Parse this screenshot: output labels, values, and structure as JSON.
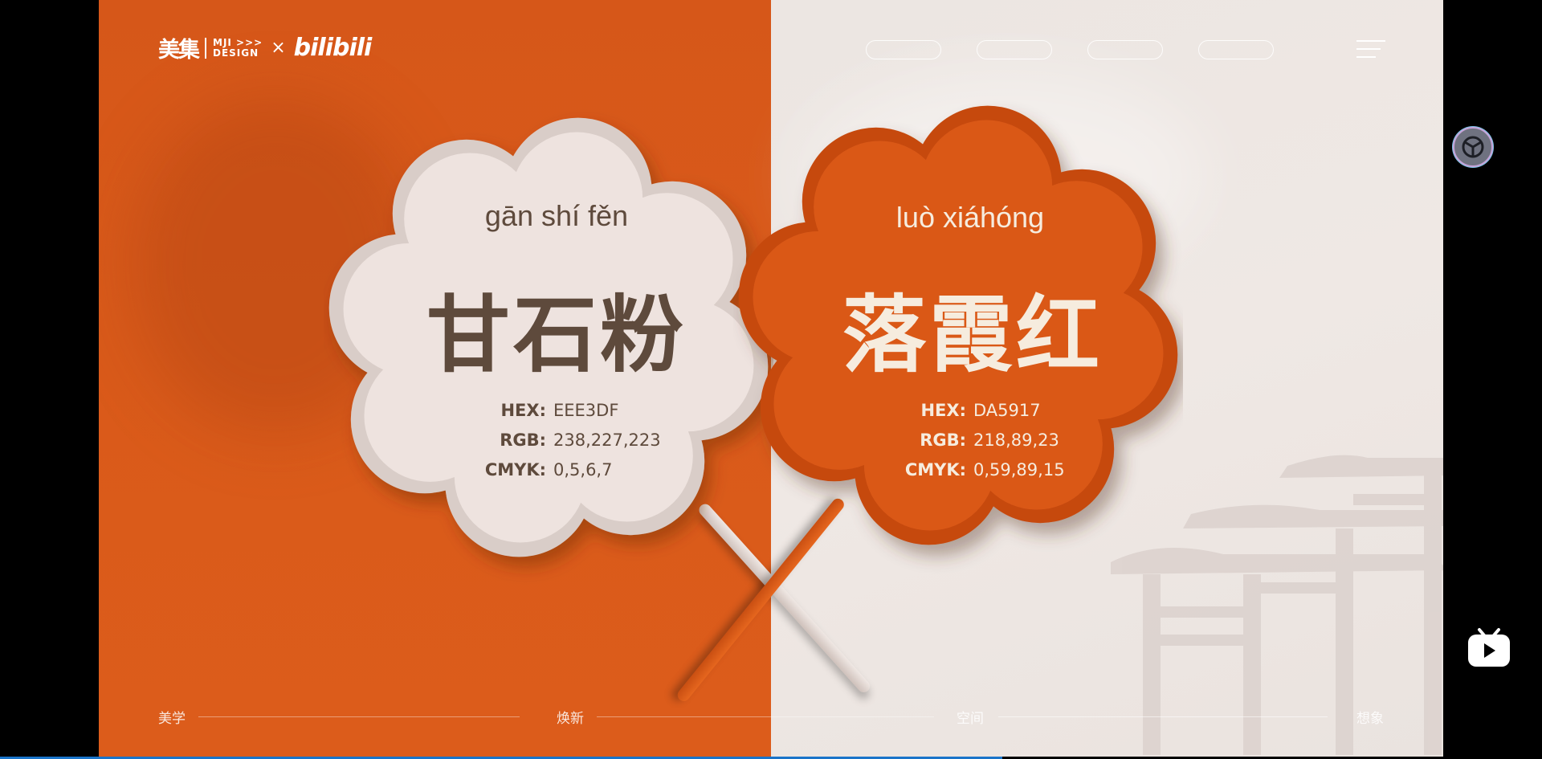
{
  "logo": {
    "brand_cn": "美集",
    "brand_en_line1": "MJI >>>",
    "brand_en_line2": "DESIGN",
    "times": "×",
    "partner": "bilibili"
  },
  "left_card": {
    "pinyin": "gān shí fěn",
    "name": "甘石粉",
    "hex_label": "HEX:",
    "hex_value": "EEE3DF",
    "rgb_label": "RGB:",
    "rgb_value": "238,227,223",
    "cmyk_label": "CMYK:",
    "cmyk_value": "0,5,6,7",
    "color": "#EEE3DF",
    "text_color": "#5e4a3c"
  },
  "right_card": {
    "pinyin": "luò xiáhóng",
    "name": "落霞红",
    "hex_label": "HEX:",
    "hex_value": "DA5917",
    "rgb_label": "RGB:",
    "rgb_value": "218,89,23",
    "cmyk_label": "CMYK:",
    "cmyk_value": "0,59,89,15",
    "color": "#DA5917",
    "text_color": "#f6ecde"
  },
  "bottom_nav": [
    "美学",
    "焕新",
    "空间",
    "想象"
  ],
  "playback": {
    "progress_fraction": 0.65
  },
  "colors": {
    "orange_bg": "#D95A1A",
    "cream_bg": "#ECE6E2",
    "progress": "#1A74C9"
  }
}
